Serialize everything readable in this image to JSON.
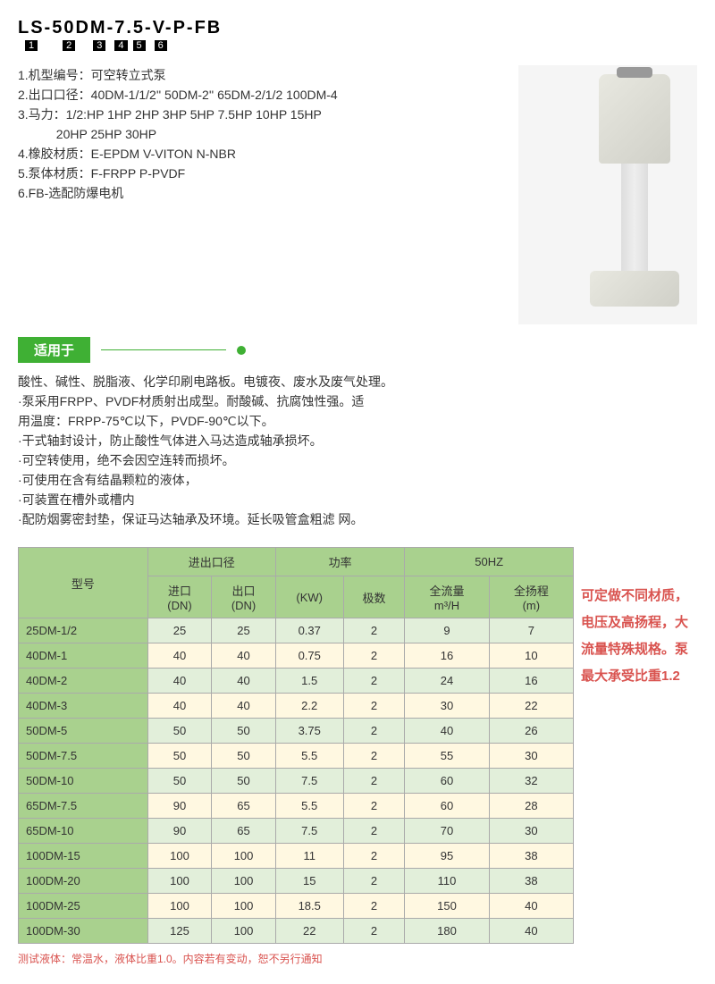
{
  "model_code": "LS-50DM-7.5-V-P-FB",
  "spec_lines": [
    "1.机型编号：可空转立式泵",
    "2.出口口径：40DM-1/1/2''  50DM-2''  65DM-2/1/2 100DM-4",
    "3.马力：1/2:HP  1HP  2HP  3HP  5HP  7.5HP 10HP  15HP",
    "           20HP  25HP  30HP",
    "4.橡胶材质：E-EPDM  V-VITON  N-NBR",
    "5.泵体材质：F-FRPP  P-PVDF",
    "6.FB-选配防爆电机"
  ],
  "section_title": "适用于",
  "apply_lines": [
    "酸性、碱性、脱脂液、化学印刷电路板。电镀夜、废水及废气处理。",
    "·泵采用FRPP、PVDF材质射出成型。耐酸碱、抗腐蚀性强。适",
    "用温度：FRPP-75℃以下，PVDF-90℃以下。",
    "·干式轴封设计，防止酸性气体进入马达造成轴承损坏。",
    "·可空转使用，绝不会因空连转而损坏。",
    "·可使用在含有结晶颗粒的液体，",
    "·可装置在槽外或槽内",
    "·配防烟雾密封垫，保证马达轴承及环境。延长吸管盒粗滤 网。"
  ],
  "table": {
    "top_headers": [
      "型号",
      "进出口径",
      "功率",
      "50HZ"
    ],
    "sub_headers": [
      "进口\n(DN)",
      "出口\n(DN)",
      "(KW)",
      "极数",
      "全流量\nm³/H",
      "全扬程\n(m)"
    ],
    "rows": [
      [
        "25DM-1/2",
        "25",
        "25",
        "0.37",
        "2",
        "9",
        "7"
      ],
      [
        "40DM-1",
        "40",
        "40",
        "0.75",
        "2",
        "16",
        "10"
      ],
      [
        "40DM-2",
        "40",
        "40",
        "1.5",
        "2",
        "24",
        "16"
      ],
      [
        "40DM-3",
        "40",
        "40",
        "2.2",
        "2",
        "30",
        "22"
      ],
      [
        "50DM-5",
        "50",
        "50",
        "3.75",
        "2",
        "40",
        "26"
      ],
      [
        "50DM-7.5",
        "50",
        "50",
        "5.5",
        "2",
        "55",
        "30"
      ],
      [
        "50DM-10",
        "50",
        "50",
        "7.5",
        "2",
        "60",
        "32"
      ],
      [
        "65DM-7.5",
        "90",
        "65",
        "5.5",
        "2",
        "60",
        "28"
      ],
      [
        "65DM-10",
        "90",
        "65",
        "7.5",
        "2",
        "70",
        "30"
      ],
      [
        "100DM-15",
        "100",
        "100",
        "11",
        "2",
        "95",
        "38"
      ],
      [
        "100DM-20",
        "100",
        "100",
        "15",
        "2",
        "110",
        "38"
      ],
      [
        "100DM-25",
        "100",
        "100",
        "18.5",
        "2",
        "150",
        "40"
      ],
      [
        "100DM-30",
        "125",
        "100",
        "22",
        "2",
        "180",
        "40"
      ]
    ]
  },
  "side_note": "可定做不同材质，电压及高扬程，大流量特殊规格。泵最大承受比重1.2",
  "footnote": "测试液体：常温水，液体比重1.0。内容若有变动，恕不另行通知",
  "colors": {
    "green": "#3fb034",
    "th": "#a9d18e",
    "odd": "#e2efda",
    "even": "#fff8e1",
    "note": "#d9534f"
  }
}
